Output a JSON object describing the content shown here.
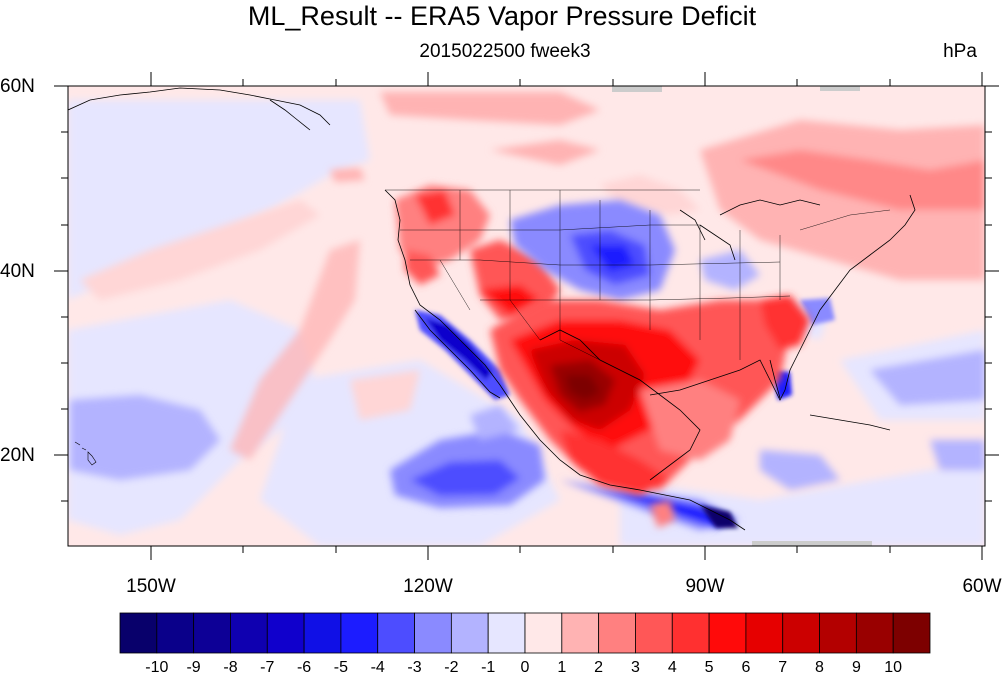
{
  "map": {
    "title": "ML_Result -- ERA5 Vapor Pressure Deficit",
    "subtitle": "2015022500 fweek3",
    "units": "hPa",
    "lat_labels": [
      "60N",
      "40N",
      "20N"
    ],
    "lon_labels": [
      "150W",
      "120W",
      "90W",
      "60W"
    ],
    "colorbar": {
      "labels": [
        "-10",
        "-9",
        "-8",
        "-7",
        "-6",
        "-5",
        "-4",
        "-3",
        "-2",
        "-1",
        "0",
        "1",
        "2",
        "3",
        "4",
        "5",
        "6",
        "7",
        "8",
        "9",
        "10"
      ],
      "colors": [
        "#08006b",
        "#0a008a",
        "#0d0096",
        "#0f00b0",
        "#1000cc",
        "#1010e6",
        "#1c1cff",
        "#4d4dff",
        "#8a8aff",
        "#b3b3ff",
        "#e6e6ff",
        "#ffe8e8",
        "#ffb3b3",
        "#ff8080",
        "#ff5757",
        "#ff3030",
        "#ff0a0a",
        "#e60000",
        "#cc0000",
        "#b30000",
        "#990000",
        "#7d0000"
      ]
    },
    "colors": {
      "ocean_base": "#ffe6e6",
      "pacific_blue": "#e6e6ff",
      "deep_red": "#7d0000",
      "deep_blue": "#0a008a"
    }
  }
}
